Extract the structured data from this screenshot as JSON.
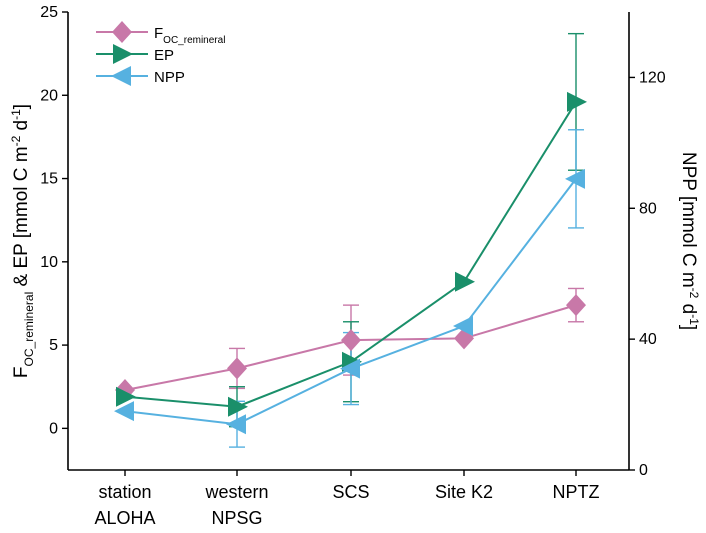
{
  "chart_data": {
    "type": "line",
    "categories": [
      [
        "station",
        "ALOHA"
      ],
      [
        "western",
        "NPSG"
      ],
      [
        "SCS"
      ],
      [
        "Site K2"
      ],
      [
        "NPTZ"
      ]
    ],
    "y_left": {
      "label_main": "F",
      "label_sub": "OC_remineral",
      "label_mid": " & EP [mmol C m",
      "label_sup1": "-2",
      "label_mid2": " d",
      "label_sup2": "-1",
      "label_end": "]",
      "ylim": [
        -2.5,
        25
      ],
      "ticks": [
        0,
        5,
        10,
        15,
        20,
        25
      ]
    },
    "y_right": {
      "label_main": "NPP [mmol C m",
      "label_sup1": "-2",
      "label_mid": " d",
      "label_sup2": "-1",
      "label_end": "]",
      "ylim": [
        0,
        140
      ],
      "ticks": [
        0,
        40,
        80,
        120
      ]
    },
    "legend": {
      "placement": "top-left",
      "entries": [
        {
          "main": "F",
          "sub": "OC_remineral"
        },
        {
          "main": "EP",
          "sub": ""
        },
        {
          "main": "NPP",
          "sub": ""
        }
      ]
    },
    "series": [
      {
        "name": "F_OC_remineral",
        "axis": "left",
        "marker": "diamond",
        "color": "#c878a8",
        "values": [
          2.3,
          3.6,
          5.3,
          5.4,
          7.4
        ],
        "err": [
          0.0,
          1.2,
          2.1,
          0.0,
          1.0
        ]
      },
      {
        "name": "EP",
        "axis": "left",
        "marker": "triangle-right",
        "color": "#1a8f6a",
        "values": [
          1.9,
          1.3,
          4.0,
          8.8,
          19.6
        ],
        "err": [
          0.0,
          1.2,
          2.4,
          0.0,
          4.1
        ]
      },
      {
        "name": "NPP",
        "axis": "right",
        "marker": "triangle-left",
        "color": "#56b1e0",
        "values": [
          18,
          14,
          31,
          44,
          89
        ],
        "err": [
          0,
          7,
          11,
          0,
          15
        ]
      }
    ],
    "grid": false
  }
}
